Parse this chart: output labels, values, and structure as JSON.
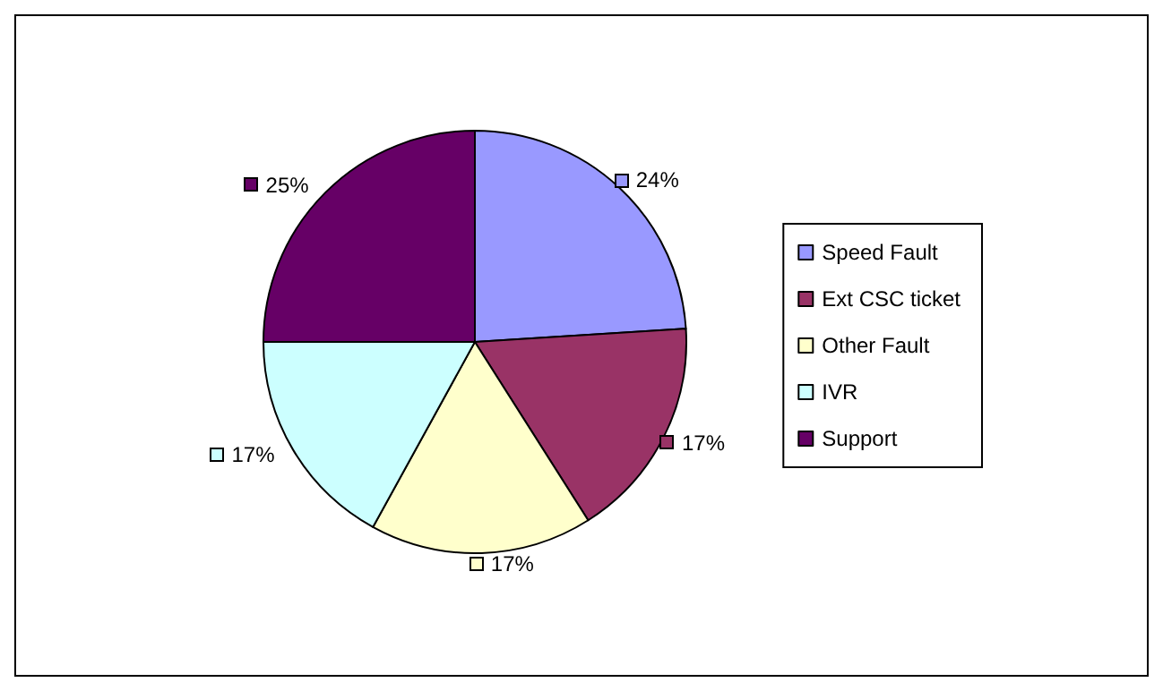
{
  "chart_data": {
    "type": "pie",
    "categories": [
      "Speed Fault",
      "Ext CSC ticket",
      "Other Fault",
      "IVR",
      "Support"
    ],
    "values": [
      24,
      17,
      17,
      17,
      25
    ],
    "colors": [
      "#9999ff",
      "#993366",
      "#ffffcc",
      "#ccffff",
      "#660066"
    ],
    "value_labels": [
      "24%",
      "17%",
      "17%",
      "17%",
      "25%"
    ],
    "legend": "right"
  }
}
